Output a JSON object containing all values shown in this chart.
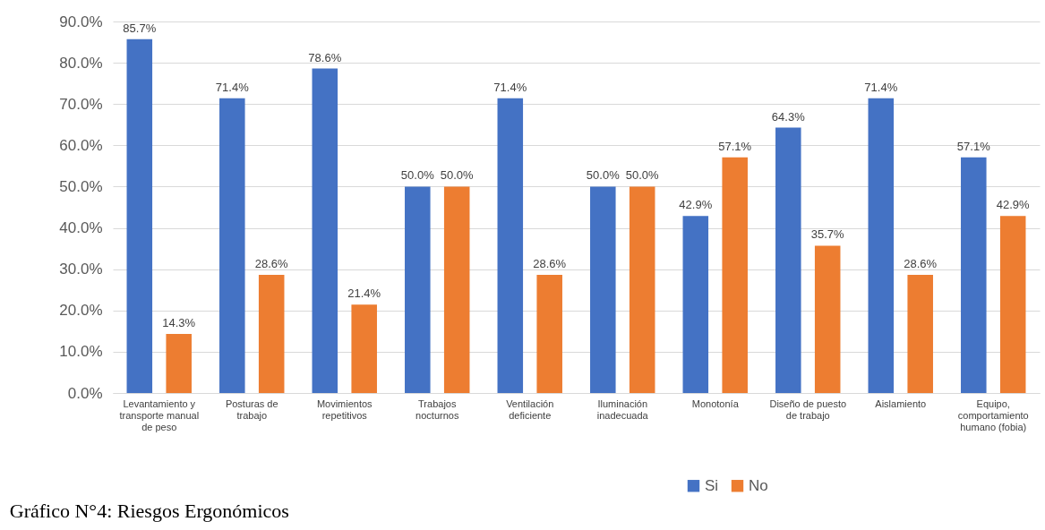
{
  "chart_data": {
    "type": "bar",
    "title": "Gráfico N°4: Riesgos Ergonómicos",
    "categories": [
      "Levantamiento y transporte manual de peso",
      "Posturas de trabajo",
      "Movimientos repetitivos",
      "Trabajos nocturnos",
      "Ventilación deficiente",
      "Iluminación inadecuada",
      "Monotonía",
      "Diseño de puesto de trabajo",
      "Aislamiento",
      "Equipo, comportamiento humano (fobia)"
    ],
    "series": [
      {
        "name": "Si",
        "color": "#4472c4",
        "values": [
          85.7,
          71.4,
          78.6,
          50.0,
          71.4,
          50.0,
          42.9,
          64.3,
          71.4,
          57.1
        ],
        "value_labels": [
          "85.7%",
          "71.4%",
          "78.6%",
          "50.0%",
          "71.4%",
          "50.0%",
          "42.9%",
          "64.3%",
          "71.4%",
          "57.1%"
        ]
      },
      {
        "name": "No",
        "color": "#ed7d31",
        "values": [
          14.3,
          28.6,
          21.4,
          50.0,
          28.6,
          50.0,
          57.1,
          35.7,
          28.6,
          42.9
        ],
        "value_labels": [
          "14.3%",
          "28.6%",
          "21.4%",
          "50.0%",
          "28.6%",
          "50.0%",
          "57.1%",
          "35.7%",
          "28.6%",
          "42.9%"
        ]
      }
    ],
    "ylim": [
      0,
      90
    ],
    "yticks": [
      {
        "value": 0,
        "label": "0.0%"
      },
      {
        "value": 10,
        "label": "10.0%"
      },
      {
        "value": 20,
        "label": "20.0%"
      },
      {
        "value": 30,
        "label": "30.0%"
      },
      {
        "value": 40,
        "label": "40.0%"
      },
      {
        "value": 50,
        "label": "50.0%"
      },
      {
        "value": 60,
        "label": "60.0%"
      },
      {
        "value": 70,
        "label": "70.0%"
      },
      {
        "value": 80,
        "label": "80.0%"
      },
      {
        "value": 90,
        "label": "90.0%"
      }
    ],
    "grid": "y",
    "legend": "bottom"
  }
}
